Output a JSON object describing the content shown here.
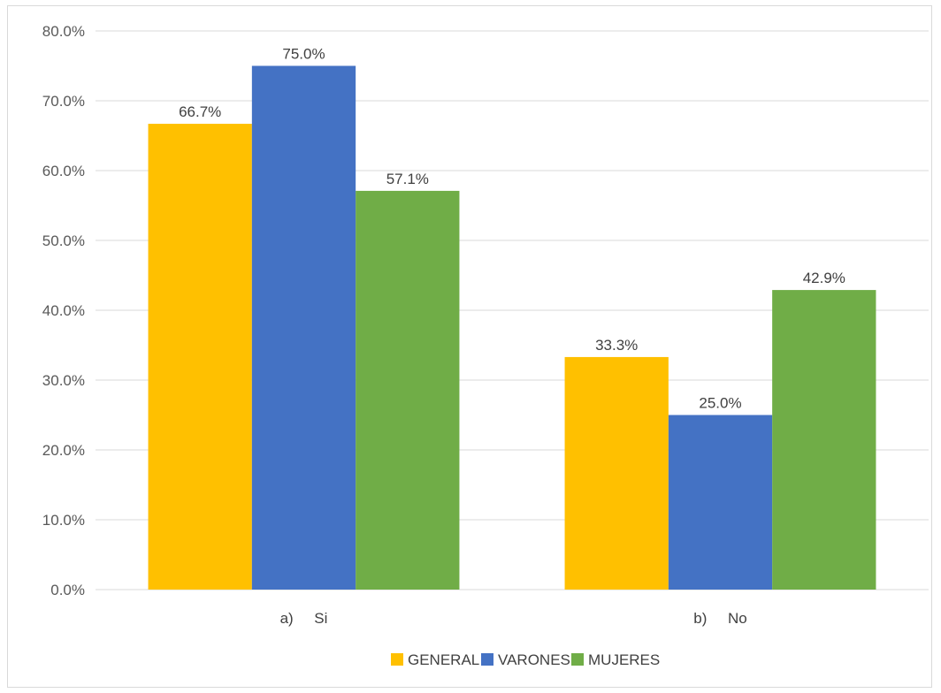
{
  "chart_data": {
    "type": "bar",
    "title": "",
    "xlabel": "",
    "ylabel": "",
    "categories": [
      "a)     Si",
      "b)     No"
    ],
    "series": [
      {
        "name": "GENERAL",
        "color": "#FFC000",
        "values": [
          66.7,
          33.3
        ],
        "labels": [
          "66.7%",
          "33.3%"
        ]
      },
      {
        "name": "VARONES",
        "color": "#4472C4",
        "values": [
          75.0,
          25.0
        ],
        "labels": [
          "75.0%",
          "25.0%"
        ]
      },
      {
        "name": "MUJERES",
        "color": "#70AD47",
        "values": [
          57.1,
          42.9
        ],
        "labels": [
          "57.1%",
          "42.9%"
        ]
      }
    ],
    "ylim": [
      0,
      80
    ],
    "yticks": [
      0,
      10,
      20,
      30,
      40,
      50,
      60,
      70,
      80
    ],
    "ytick_labels": [
      "0.0%",
      "10.0%",
      "20.0%",
      "30.0%",
      "40.0%",
      "50.0%",
      "60.0%",
      "70.0%",
      "80.0%"
    ],
    "grid": true,
    "legend_position": "bottom",
    "gridline_color": "#d9d9d9"
  }
}
